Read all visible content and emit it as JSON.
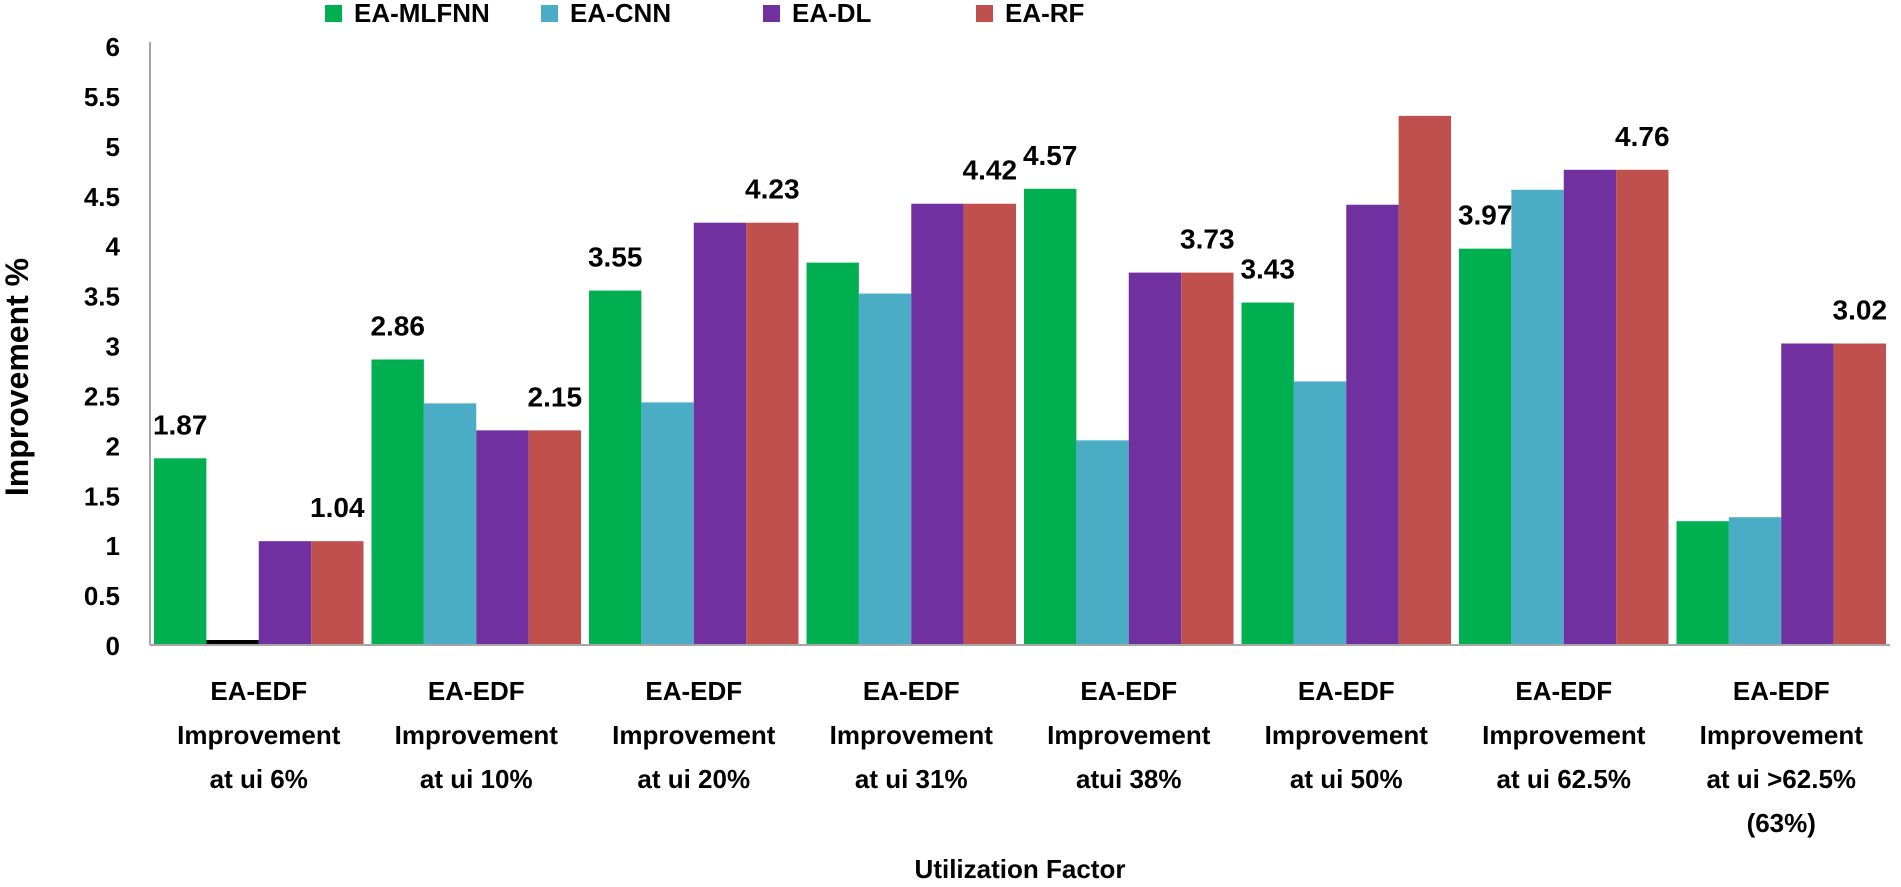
{
  "chart_data": {
    "type": "bar",
    "title": "",
    "xlabel": "Utilization Factor",
    "ylabel": "Improvement %",
    "ylim": [
      0,
      6
    ],
    "yticks": [
      "0",
      "0.5",
      "1",
      "1.5",
      "2",
      "2.5",
      "3",
      "3.5",
      "4",
      "4.5",
      "5",
      "5.5",
      "6"
    ],
    "grid": false,
    "legend_position": "top",
    "categories": [
      [
        "EA-EDF",
        "Improvement",
        "at ui 6%"
      ],
      [
        "EA-EDF",
        "Improvement",
        "at ui 10%"
      ],
      [
        "EA-EDF",
        "Improvement",
        "at ui 20%"
      ],
      [
        "EA-EDF",
        "Improvement",
        "at ui 31%"
      ],
      [
        "EA-EDF",
        "Improvement",
        "atui  38%"
      ],
      [
        "EA-EDF",
        "Improvement",
        "at ui  50%"
      ],
      [
        "EA-EDF",
        "Improvement",
        "at ui 62.5%"
      ],
      [
        "EA-EDF",
        "Improvement",
        "at ui  >62.5%",
        "(63%)"
      ]
    ],
    "series": [
      {
        "name": "EA-MLFNN",
        "color": "#00b050",
        "values": [
          1.87,
          2.86,
          3.55,
          3.83,
          4.57,
          3.43,
          3.97,
          1.24
        ]
      },
      {
        "name": "EA-CNN",
        "color": "#4bacc6",
        "values": [
          0.05,
          2.42,
          2.43,
          3.52,
          2.05,
          2.64,
          4.56,
          1.28
        ]
      },
      {
        "name": "EA-DL",
        "color": "#7030a0",
        "values": [
          1.04,
          2.15,
          4.23,
          4.42,
          3.73,
          4.41,
          4.76,
          3.02
        ]
      },
      {
        "name": "EA-RF",
        "color": "#c0504d",
        "values": [
          1.04,
          2.15,
          4.23,
          4.42,
          3.73,
          5.3,
          4.76,
          3.02
        ]
      }
    ],
    "zero_bar_color": "#000000",
    "data_labels": [
      {
        "text": "1.87",
        "category": 0,
        "series": 0
      },
      {
        "text": "1.04",
        "category": 0,
        "series": 3
      },
      {
        "text": "2.86",
        "category": 1,
        "series": 0
      },
      {
        "text": "2.15",
        "category": 1,
        "series": 3
      },
      {
        "text": "3.55",
        "category": 2,
        "series": 0
      },
      {
        "text": "4.23",
        "category": 2,
        "series": 3
      },
      {
        "text": "4.42",
        "category": 3,
        "series": 3
      },
      {
        "text": "4.57",
        "category": 4,
        "series": 0
      },
      {
        "text": "3.73",
        "category": 4,
        "series": 3
      },
      {
        "text": "3.43",
        "category": 5,
        "series": 0
      },
      {
        "text": "3.97",
        "category": 6,
        "series": 0
      },
      {
        "text": "4.76",
        "category": 6,
        "series": 3
      },
      {
        "text": "3.02",
        "category": 7,
        "series": 3
      }
    ]
  }
}
